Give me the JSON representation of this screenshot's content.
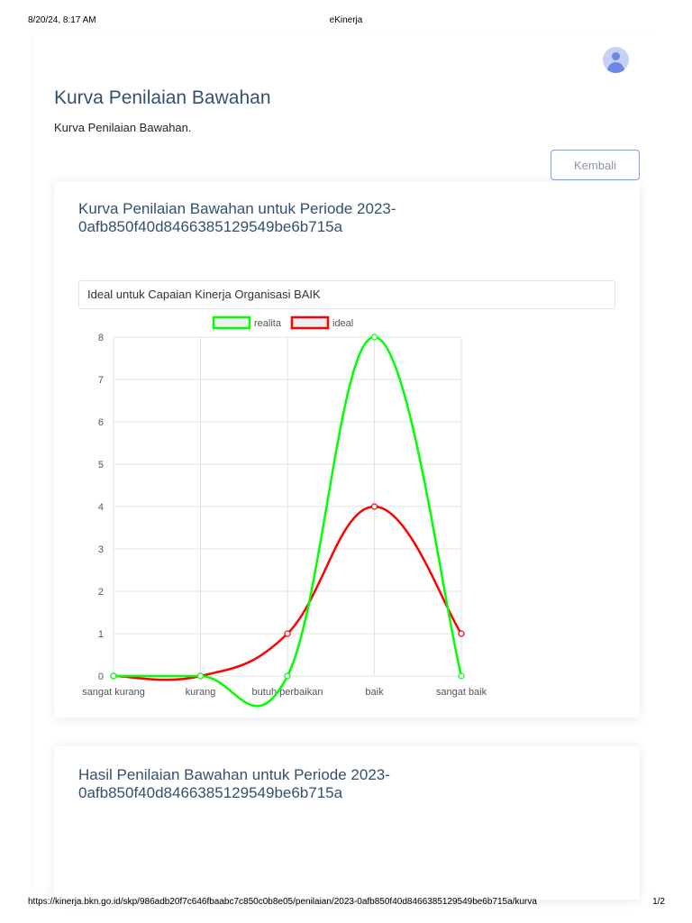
{
  "print": {
    "datetime": "8/20/24, 8:17 AM",
    "title": "eKinerja",
    "url": "https://kinerja.bkn.go.id/skp/986adb20f7c646fbaabc7c850c0b8e05/penilaian/2023-0afb850f40d8466385129549be6b715a/kurva",
    "page": "1/2"
  },
  "header": {
    "title": "Kurva Penilaian Bawahan",
    "subtitle": "Kurva Penilaian Bawahan.",
    "back_label": "Kembali"
  },
  "curve_card": {
    "title": "Kurva Penilaian Bawahan untuk Periode 2023-0afb850f40d8466385129549be6b715a",
    "select_value": "Ideal untuk Capaian Kinerja Organisasi BAIK"
  },
  "result_card": {
    "title": "Hasil Penilaian Bawahan untuk Periode 2023-0afb850f40d8466385129549be6b715a"
  },
  "chart_data": {
    "type": "line",
    "categories": [
      "sangat kurang",
      "kurang",
      "butuh perbaikan",
      "baik",
      "sangat baik"
    ],
    "series": [
      {
        "name": "realita",
        "values": [
          0,
          0,
          0,
          8,
          0
        ],
        "color": "#00ff00"
      },
      {
        "name": "ideal",
        "values": [
          0,
          0,
          1,
          4,
          1
        ],
        "color": "#ff0000"
      }
    ],
    "ylim": [
      0,
      8
    ],
    "yticks": [
      0,
      1,
      2,
      3,
      4,
      5,
      6,
      7,
      8
    ],
    "grid": true,
    "legend": "top"
  }
}
